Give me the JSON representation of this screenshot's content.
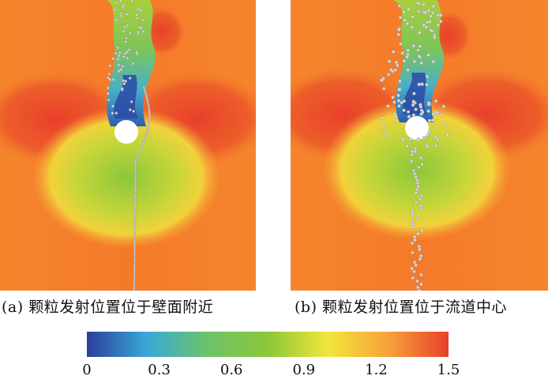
{
  "panels": [
    {
      "id": "a",
      "caption": "(a) 颗粒发射位置位于壁面附近",
      "release": "wall"
    },
    {
      "id": "b",
      "caption": "(b) 颗粒发射位置位于流道中心",
      "release": "center"
    }
  ],
  "colorbar": {
    "ticks": [
      "0",
      "0.3",
      "0.6",
      "0.9",
      "1.2",
      "1.5"
    ],
    "min": 0,
    "max": 1.5,
    "colors": [
      "#2b3f9a",
      "#3aa8d8",
      "#6cc36a",
      "#8bc73a",
      "#f2e63a",
      "#f7a23a",
      "#e8402a"
    ]
  },
  "colors": {
    "background_field": "#f47a2a",
    "high_velocity": "#e8402a",
    "low_velocity": "#2b3f9a",
    "particle": "#d9d9d9"
  }
}
